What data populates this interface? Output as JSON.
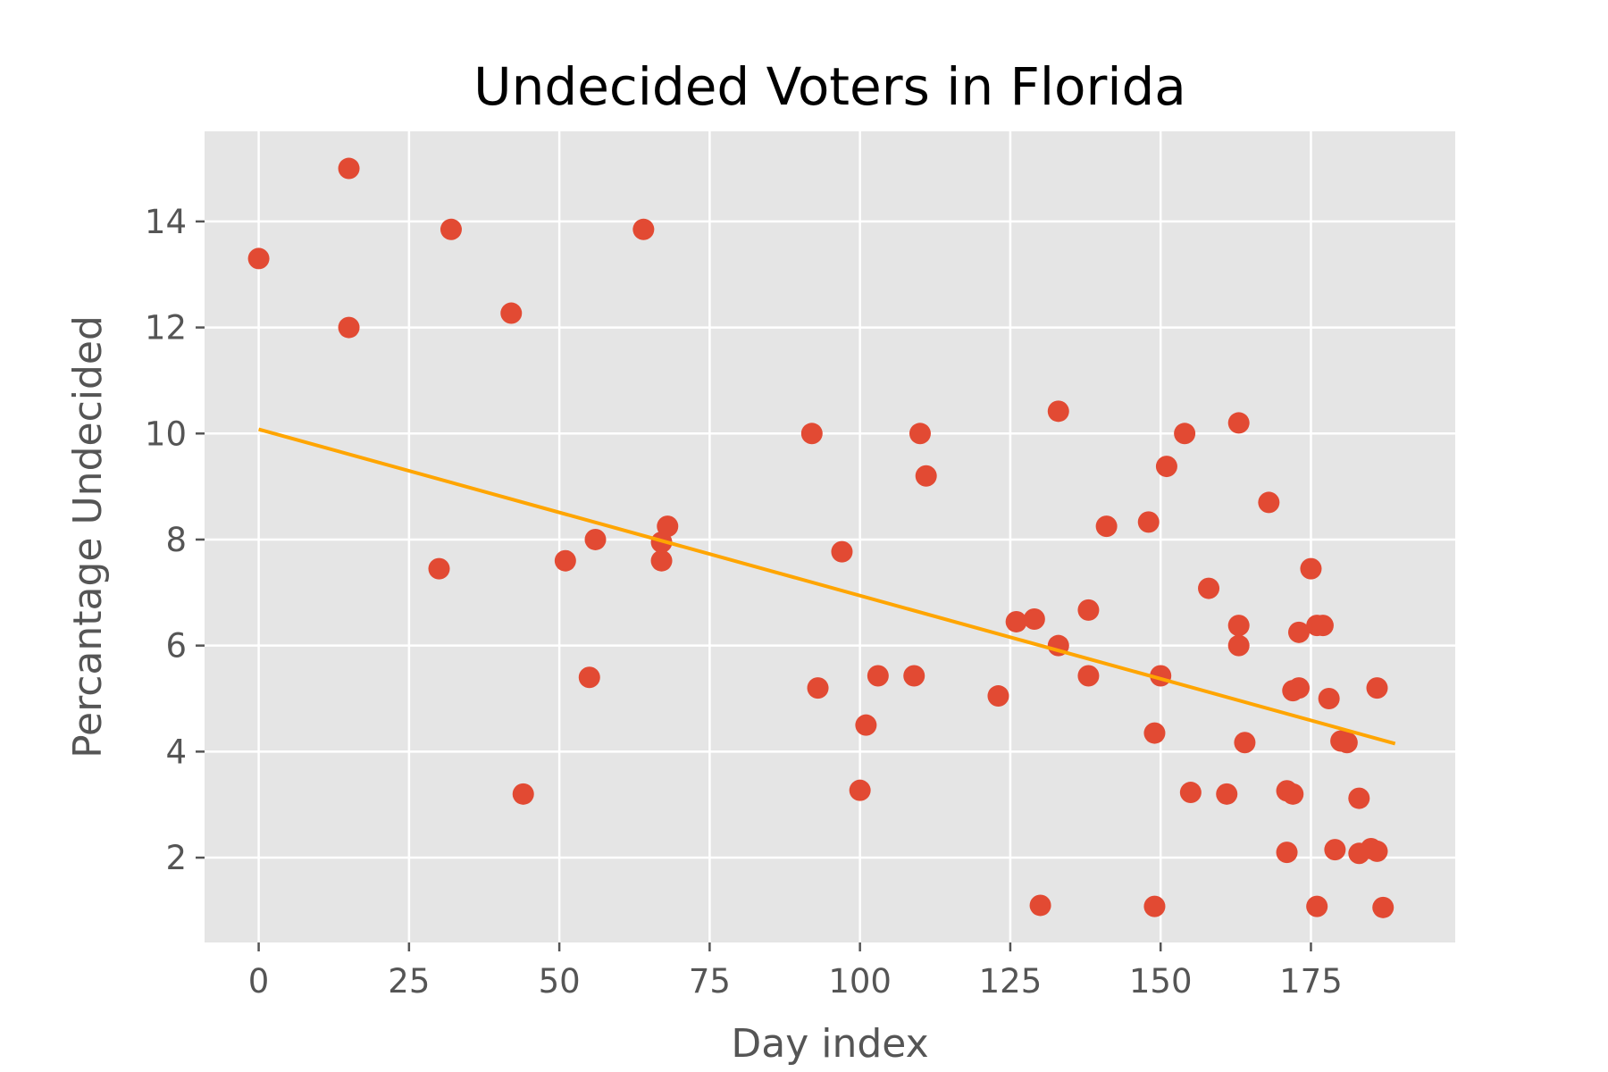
{
  "chart_data": {
    "type": "scatter",
    "title": "Undecided Voters in Florida",
    "xlabel": "Day index",
    "ylabel": "Percantage Undecided",
    "xlim": [
      -9,
      199
    ],
    "ylim": [
      0.4,
      15.7
    ],
    "xticks": [
      0,
      25,
      50,
      75,
      100,
      125,
      150,
      175
    ],
    "yticks": [
      2,
      4,
      6,
      8,
      10,
      12,
      14
    ],
    "grid": true,
    "legend": "none",
    "colors": {
      "points": "#e24a33",
      "fit_line": "#ffa500",
      "panel": "#e5e5e5",
      "grid": "#ffffff"
    },
    "points": [
      {
        "x": 0,
        "y": 13.3
      },
      {
        "x": 15,
        "y": 15.0
      },
      {
        "x": 15,
        "y": 12.0
      },
      {
        "x": 30,
        "y": 7.45
      },
      {
        "x": 32,
        "y": 13.85
      },
      {
        "x": 42,
        "y": 12.27
      },
      {
        "x": 44,
        "y": 3.2
      },
      {
        "x": 51,
        "y": 7.6
      },
      {
        "x": 55,
        "y": 5.4
      },
      {
        "x": 56,
        "y": 8.0
      },
      {
        "x": 64,
        "y": 13.85
      },
      {
        "x": 67,
        "y": 7.6
      },
      {
        "x": 67,
        "y": 7.95
      },
      {
        "x": 68,
        "y": 8.25
      },
      {
        "x": 92,
        "y": 10.0
      },
      {
        "x": 93,
        "y": 5.2
      },
      {
        "x": 97,
        "y": 7.77
      },
      {
        "x": 100,
        "y": 3.27
      },
      {
        "x": 101,
        "y": 4.5
      },
      {
        "x": 103,
        "y": 5.43
      },
      {
        "x": 109,
        "y": 5.43
      },
      {
        "x": 110,
        "y": 10.0
      },
      {
        "x": 111,
        "y": 9.2
      },
      {
        "x": 123,
        "y": 5.05
      },
      {
        "x": 126,
        "y": 6.45
      },
      {
        "x": 129,
        "y": 6.5
      },
      {
        "x": 130,
        "y": 1.1
      },
      {
        "x": 133,
        "y": 10.42
      },
      {
        "x": 133,
        "y": 6.0
      },
      {
        "x": 138,
        "y": 6.67
      },
      {
        "x": 138,
        "y": 5.43
      },
      {
        "x": 141,
        "y": 8.25
      },
      {
        "x": 148,
        "y": 8.33
      },
      {
        "x": 149,
        "y": 4.35
      },
      {
        "x": 149,
        "y": 1.08
      },
      {
        "x": 150,
        "y": 5.43
      },
      {
        "x": 151,
        "y": 9.38
      },
      {
        "x": 154,
        "y": 10.0
      },
      {
        "x": 155,
        "y": 3.23
      },
      {
        "x": 158,
        "y": 7.08
      },
      {
        "x": 161,
        "y": 3.2
      },
      {
        "x": 163,
        "y": 10.2
      },
      {
        "x": 163,
        "y": 6.38
      },
      {
        "x": 163,
        "y": 6.0
      },
      {
        "x": 164,
        "y": 4.17
      },
      {
        "x": 168,
        "y": 8.7
      },
      {
        "x": 171,
        "y": 3.26
      },
      {
        "x": 171,
        "y": 2.1
      },
      {
        "x": 172,
        "y": 5.15
      },
      {
        "x": 172,
        "y": 3.2
      },
      {
        "x": 173,
        "y": 5.2
      },
      {
        "x": 173,
        "y": 6.25
      },
      {
        "x": 175,
        "y": 7.45
      },
      {
        "x": 176,
        "y": 6.38
      },
      {
        "x": 176,
        "y": 1.08
      },
      {
        "x": 177,
        "y": 6.38
      },
      {
        "x": 178,
        "y": 5.0
      },
      {
        "x": 179,
        "y": 2.15
      },
      {
        "x": 180,
        "y": 4.2
      },
      {
        "x": 181,
        "y": 4.17
      },
      {
        "x": 183,
        "y": 3.12
      },
      {
        "x": 183,
        "y": 2.08
      },
      {
        "x": 185,
        "y": 2.17
      },
      {
        "x": 186,
        "y": 2.12
      },
      {
        "x": 186,
        "y": 5.2
      },
      {
        "x": 187,
        "y": 1.06
      }
    ],
    "fit_line": {
      "x": [
        0,
        189
      ],
      "y": [
        10.08,
        4.15
      ]
    }
  }
}
